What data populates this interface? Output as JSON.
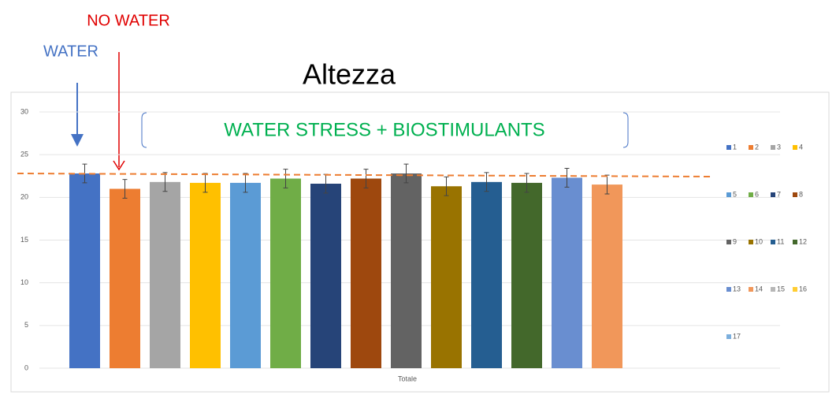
{
  "chart_data": {
    "type": "bar",
    "title": "Altezza",
    "annotations": {
      "no_water": "NO WATER",
      "water": "WATER",
      "group": "WATER STRESS + BIOSTIMULANTS"
    },
    "categories": [
      "Totale"
    ],
    "ylim": [
      0,
      30
    ],
    "yticks": [
      0,
      5,
      10,
      15,
      20,
      25,
      30
    ],
    "grid": true,
    "series": [
      {
        "name": "1",
        "color": "#4472c4",
        "values": [
          22.8
        ],
        "errors": [
          1.1
        ]
      },
      {
        "name": "2",
        "color": "#ed7d31",
        "values": [
          21.0
        ],
        "errors": [
          1.1
        ]
      },
      {
        "name": "3",
        "color": "#a5a5a5",
        "values": [
          21.8
        ],
        "errors": [
          1.1
        ]
      },
      {
        "name": "4",
        "color": "#ffc000",
        "values": [
          21.7
        ],
        "errors": [
          1.1
        ]
      },
      {
        "name": "5",
        "color": "#5b9bd5",
        "values": [
          21.7
        ],
        "errors": [
          1.1
        ]
      },
      {
        "name": "6",
        "color": "#70ad47",
        "values": [
          22.2
        ],
        "errors": [
          1.1
        ]
      },
      {
        "name": "7",
        "color": "#264478",
        "values": [
          21.6
        ],
        "errors": [
          1.1
        ]
      },
      {
        "name": "8",
        "color": "#9e480e",
        "values": [
          22.2
        ],
        "errors": [
          1.1
        ]
      },
      {
        "name": "9",
        "color": "#636363",
        "values": [
          22.8
        ],
        "errors": [
          1.1
        ]
      },
      {
        "name": "10",
        "color": "#997300",
        "values": [
          21.3
        ],
        "errors": [
          1.1
        ]
      },
      {
        "name": "11",
        "color": "#255e91",
        "values": [
          21.8
        ],
        "errors": [
          1.1
        ]
      },
      {
        "name": "12",
        "color": "#43682b",
        "values": [
          21.7
        ],
        "errors": [
          1.1
        ]
      },
      {
        "name": "13",
        "color": "#698ed0",
        "values": [
          22.3
        ],
        "errors": [
          1.1
        ]
      },
      {
        "name": "14",
        "color": "#f1975a",
        "values": [
          21.5
        ],
        "errors": [
          1.1
        ]
      },
      {
        "name": "15",
        "color": "#b7b7b7",
        "values": [
          null
        ],
        "errors": [
          null
        ]
      },
      {
        "name": "16",
        "color": "#ffcd33",
        "values": [
          null
        ],
        "errors": [
          null
        ]
      },
      {
        "name": "17",
        "color": "#7cafdd",
        "values": [
          null
        ],
        "errors": [
          null
        ]
      }
    ]
  }
}
